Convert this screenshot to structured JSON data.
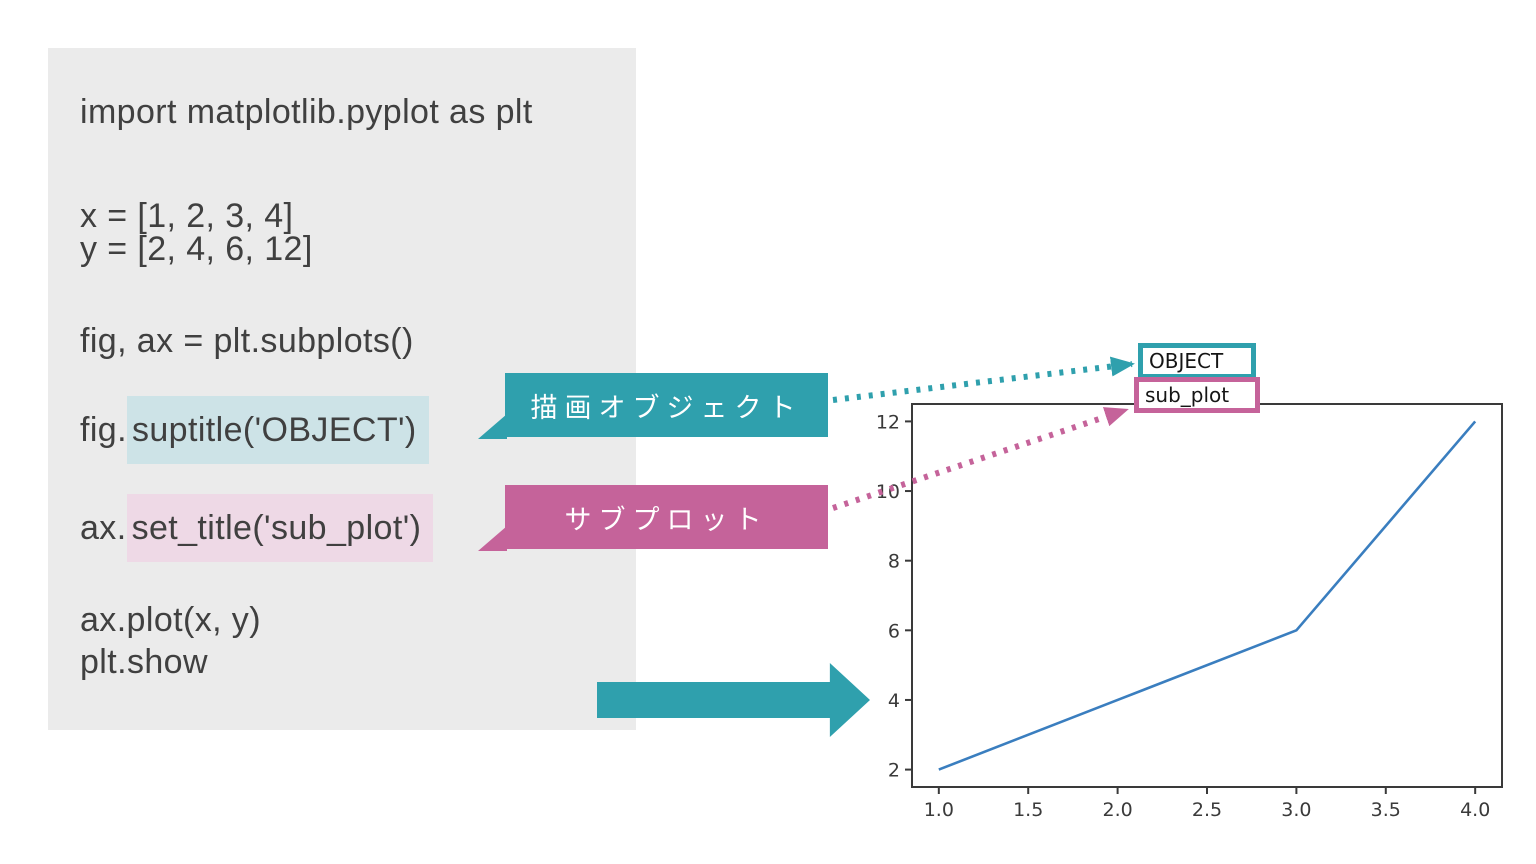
{
  "palette": {
    "teal": "#2fa0ad",
    "teal_highlight": "#cde3e7",
    "pink": "#c5639a",
    "pink_highlight": "#eed9e6",
    "panel_background": "#ebebeb",
    "code_text": "#404040",
    "plot_line_blue": "#3a7ebf",
    "axis_color": "#3a3a3a"
  },
  "code_panel": {
    "import_line": "import matplotlib.pyplot as plt",
    "x_line": "x = [1, 2, 3, 4]",
    "y_line": "y = [2, 4, 6, 12]",
    "subplots_line": "fig, ax = plt.subplots()",
    "suptitle_prefix": "fig.",
    "suptitle_highlight": "suptitle('OBJECT')",
    "settitle_prefix": "ax.",
    "settitle_highlight": "set_title('sub_plot')",
    "plot_line": "ax.plot(x, y)",
    "show_line": "plt.show"
  },
  "callouts": {
    "figure_label": "描画オブジェクト",
    "axes_label": "サブプロット"
  },
  "chart_data": {
    "type": "line",
    "suptitle": "OBJECT",
    "title": "sub_plot",
    "x": [
      1,
      2,
      3,
      4
    ],
    "y": [
      2,
      4,
      6,
      12
    ],
    "xticks": [
      1.0,
      1.5,
      2.0,
      2.5,
      3.0,
      3.5,
      4.0
    ],
    "xtick_labels": [
      "1.0",
      "1.5",
      "2.0",
      "2.5",
      "3.0",
      "3.5",
      "4.0"
    ],
    "yticks": [
      2,
      4,
      6,
      8,
      10,
      12
    ],
    "ytick_labels": [
      "2",
      "4",
      "6",
      "8",
      "10",
      "12"
    ],
    "xlim": [
      0.85,
      4.15
    ],
    "ylim": [
      1.5,
      12.5
    ],
    "grid": false,
    "legend": false,
    "line_color": "#3a7ebf"
  }
}
